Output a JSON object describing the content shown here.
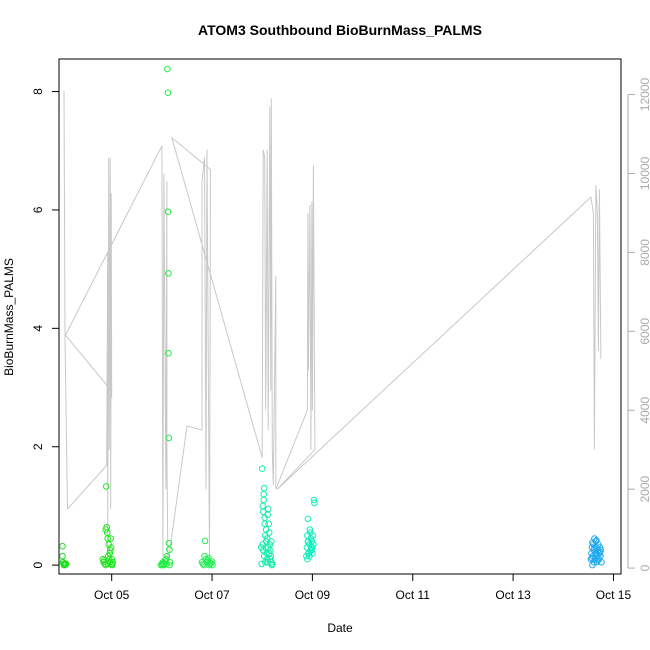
{
  "chart_data": {
    "type": "scatter",
    "title": "ATOM3 Southbound BioBurnMass_PALMS",
    "xlabel": "Date",
    "ylabel": "BioBurnMass_PALMS",
    "xlim": [
      3.95,
      15.15
    ],
    "ylim": [
      -0.15,
      8.55
    ],
    "y2lim": [
      -150,
      12900
    ],
    "x_ticks": [
      {
        "value": 5,
        "label": "Oct 05"
      },
      {
        "value": 7,
        "label": "Oct 07"
      },
      {
        "value": 9,
        "label": "Oct 09"
      },
      {
        "value": 11,
        "label": "Oct 11"
      },
      {
        "value": 13,
        "label": "Oct 13"
      },
      {
        "value": 15,
        "label": "Oct 15"
      }
    ],
    "y_ticks": [
      {
        "value": 0,
        "label": "0"
      },
      {
        "value": 2,
        "label": "2"
      },
      {
        "value": 4,
        "label": "4"
      },
      {
        "value": 6,
        "label": "6"
      },
      {
        "value": 8,
        "label": "8"
      }
    ],
    "y2_ticks": [
      {
        "value": 0,
        "label": "0"
      },
      {
        "value": 2000,
        "label": "2000"
      },
      {
        "value": 4000,
        "label": "4000"
      },
      {
        "value": 6000,
        "label": "6000"
      },
      {
        "value": 8000,
        "label": "8000"
      },
      {
        "value": 10000,
        "label": "10000"
      },
      {
        "value": 12000,
        "label": "12000"
      }
    ],
    "grid": false,
    "colors": {
      "line": "#c8c8c8",
      "right_axis": "#aaaaaa",
      "frame": "#000000"
    },
    "altitude_line": [
      [
        4.05,
        12100
      ],
      [
        4.07,
        6000
      ],
      [
        4.07,
        5800
      ],
      [
        4.12,
        1500
      ],
      [
        4.9,
        2600
      ],
      [
        4.92,
        8000
      ],
      [
        4.92,
        300
      ],
      [
        4.94,
        10400
      ],
      [
        4.95,
        3000
      ],
      [
        4.97,
        10400
      ],
      [
        4.98,
        1500
      ],
      [
        4.99,
        9500
      ],
      [
        5.0,
        4300
      ],
      [
        4.99,
        4500
      ],
      [
        4.08,
        5900
      ],
      [
        6.0,
        10700
      ],
      [
        6.02,
        300
      ],
      [
        6.04,
        10000
      ],
      [
        6.08,
        2000
      ],
      [
        6.1,
        9800
      ],
      [
        6.1,
        3000
      ],
      [
        6.12,
        100
      ],
      [
        6.5,
        3600
      ],
      [
        6.8,
        3500
      ],
      [
        6.8,
        9800
      ],
      [
        6.85,
        10400
      ],
      [
        6.88,
        2000
      ],
      [
        6.9,
        10600
      ],
      [
        6.95,
        100
      ],
      [
        6.97,
        10100
      ],
      [
        6.2,
        10900
      ],
      [
        8.0,
        2800
      ],
      [
        8.02,
        10600
      ],
      [
        8.05,
        10400
      ],
      [
        8.07,
        4000
      ],
      [
        8.1,
        10600
      ],
      [
        8.12,
        3500
      ],
      [
        8.15,
        11700
      ],
      [
        8.17,
        4500
      ],
      [
        8.18,
        11900
      ],
      [
        8.2,
        3000
      ],
      [
        8.22,
        2100
      ],
      [
        8.27,
        7400
      ],
      [
        8.27,
        2000
      ],
      [
        8.9,
        4000
      ],
      [
        8.91,
        9000
      ],
      [
        8.92,
        5000
      ],
      [
        8.95,
        9200
      ],
      [
        8.97,
        3000
      ],
      [
        8.99,
        9300
      ],
      [
        9.0,
        4000
      ],
      [
        9.02,
        10200
      ],
      [
        9.05,
        3000
      ],
      [
        8.3,
        2000
      ],
      [
        14.55,
        9400
      ],
      [
        14.6,
        9000
      ],
      [
        14.62,
        3000
      ],
      [
        14.65,
        9700
      ],
      [
        14.68,
        9000
      ],
      [
        14.7,
        5500
      ],
      [
        14.72,
        9600
      ],
      [
        14.75,
        5300
      ]
    ],
    "series": [
      {
        "color": "#22dd22",
        "points": [
          [
            4.02,
            0.32
          ],
          [
            4.02,
            0.15
          ],
          [
            4.03,
            0.05
          ],
          [
            4.04,
            0.02
          ],
          [
            4.05,
            0.0
          ],
          [
            4.06,
            0.03
          ],
          [
            4.07,
            0.0
          ],
          [
            4.08,
            0.01
          ],
          [
            4.09,
            0.02
          ]
        ]
      },
      {
        "color": "#22e622",
        "points": [
          [
            4.82,
            0.1
          ],
          [
            4.84,
            0.05
          ],
          [
            4.86,
            0.02
          ],
          [
            4.88,
            0.6
          ],
          [
            4.88,
            0.0
          ],
          [
            4.89,
            1.33
          ],
          [
            4.9,
            0.64
          ],
          [
            4.91,
            0.55
          ],
          [
            4.92,
            0.45
          ],
          [
            4.93,
            0.15
          ],
          [
            4.94,
            0.35
          ],
          [
            4.95,
            0.1
          ],
          [
            4.96,
            0.2
          ],
          [
            4.97,
            0.05
          ],
          [
            4.98,
            0.45
          ],
          [
            4.99,
            0.3
          ],
          [
            5.0,
            0.02
          ],
          [
            5.0,
            0.1
          ],
          [
            5.01,
            0.0
          ],
          [
            5.02,
            0.05
          ],
          [
            4.85,
            0.08
          ],
          [
            4.93,
            0.02
          ],
          [
            4.97,
            0.25
          ],
          [
            5.01,
            0.02
          ]
        ]
      },
      {
        "color": "#22ee44",
        "points": [
          [
            5.98,
            0.0
          ],
          [
            6.0,
            0.02
          ],
          [
            6.02,
            0.05
          ],
          [
            6.04,
            0.0
          ],
          [
            6.06,
            0.08
          ],
          [
            6.08,
            0.1
          ],
          [
            6.1,
            0.15
          ],
          [
            6.11,
            8.38
          ],
          [
            6.12,
            7.98
          ],
          [
            6.12,
            5.97
          ],
          [
            6.13,
            4.93
          ],
          [
            6.13,
            3.58
          ],
          [
            6.14,
            2.15
          ],
          [
            6.14,
            0.37
          ],
          [
            6.15,
            0.26
          ],
          [
            6.15,
            0.0
          ],
          [
            6.16,
            0.05
          ],
          [
            6.01,
            0.0
          ],
          [
            6.05,
            0.03
          ],
          [
            6.09,
            0.02
          ]
        ]
      },
      {
        "color": "#22ee55",
        "points": [
          [
            6.8,
            0.05
          ],
          [
            6.82,
            0.02
          ],
          [
            6.84,
            0.0
          ],
          [
            6.86,
            0.41
          ],
          [
            6.88,
            0.1
          ],
          [
            6.9,
            0.05
          ],
          [
            6.92,
            0.08
          ],
          [
            6.94,
            0.0
          ],
          [
            6.96,
            0.02
          ],
          [
            6.98,
            0.03
          ],
          [
            7.0,
            0.06
          ],
          [
            6.85,
            0.15
          ],
          [
            6.93,
            0.12
          ],
          [
            7.01,
            0.0
          ]
        ]
      },
      {
        "color": "#11eeaa",
        "points": [
          [
            8.0,
            1.63
          ],
          [
            8.01,
            1.0
          ],
          [
            8.02,
            0.9
          ],
          [
            8.03,
            1.1
          ],
          [
            8.03,
            1.2
          ],
          [
            8.04,
            1.3
          ],
          [
            8.05,
            0.8
          ],
          [
            8.06,
            0.5
          ],
          [
            8.07,
            0.3
          ],
          [
            8.08,
            0.4
          ],
          [
            8.09,
            0.2
          ],
          [
            8.1,
            0.1
          ],
          [
            8.11,
            0.05
          ],
          [
            8.12,
            0.95
          ],
          [
            8.13,
            0.7
          ],
          [
            8.14,
            0.55
          ],
          [
            8.15,
            0.35
          ],
          [
            8.16,
            0.25
          ],
          [
            8.17,
            0.15
          ],
          [
            8.18,
            0.05
          ],
          [
            8.19,
            0.0
          ],
          [
            8.2,
            0.02
          ],
          [
            8.01,
            0.35
          ],
          [
            8.02,
            0.25
          ],
          [
            8.04,
            0.15
          ],
          [
            8.06,
            0.05
          ],
          [
            8.08,
            0.6
          ],
          [
            8.1,
            0.45
          ],
          [
            8.12,
            0.3
          ],
          [
            8.14,
            0.2
          ],
          [
            8.16,
            0.1
          ],
          [
            8.18,
            0.4
          ],
          [
            7.98,
            0.3
          ],
          [
            7.99,
            0.02
          ],
          [
            8.05,
            0.7
          ],
          [
            8.11,
            0.85
          ]
        ]
      },
      {
        "color": "#11eebb",
        "points": [
          [
            8.88,
            0.15
          ],
          [
            8.89,
            0.3
          ],
          [
            8.9,
            0.5
          ],
          [
            8.91,
            0.78
          ],
          [
            8.92,
            0.4
          ],
          [
            8.93,
            0.2
          ],
          [
            8.94,
            0.35
          ],
          [
            8.95,
            0.6
          ],
          [
            8.96,
            0.55
          ],
          [
            8.97,
            0.45
          ],
          [
            8.98,
            0.25
          ],
          [
            8.99,
            0.4
          ],
          [
            9.0,
            0.3
          ],
          [
            9.01,
            0.5
          ],
          [
            9.02,
            0.35
          ],
          [
            9.03,
            1.1
          ],
          [
            9.04,
            1.05
          ],
          [
            8.9,
            0.1
          ],
          [
            8.92,
            0.2
          ],
          [
            8.94,
            0.15
          ],
          [
            8.96,
            0.25
          ],
          [
            8.98,
            0.3
          ],
          [
            9.0,
            0.2
          ],
          [
            8.91,
            0.4
          ]
        ]
      },
      {
        "color": "#22aaee",
        "points": [
          [
            14.55,
            0.1
          ],
          [
            14.56,
            0.2
          ],
          [
            14.57,
            0.3
          ],
          [
            14.58,
            0.0
          ],
          [
            14.59,
            0.15
          ],
          [
            14.6,
            0.35
          ],
          [
            14.61,
            0.25
          ],
          [
            14.62,
            0.45
          ],
          [
            14.63,
            0.1
          ],
          [
            14.64,
            0.2
          ],
          [
            14.65,
            0.4
          ],
          [
            14.66,
            0.3
          ],
          [
            14.67,
            0.05
          ],
          [
            14.68,
            0.15
          ],
          [
            14.69,
            0.25
          ],
          [
            14.7,
            0.35
          ],
          [
            14.71,
            0.1
          ],
          [
            14.72,
            0.2
          ],
          [
            14.73,
            0.3
          ],
          [
            14.74,
            0.15
          ],
          [
            14.75,
            0.25
          ],
          [
            14.76,
            0.05
          ],
          [
            14.57,
            0.12
          ],
          [
            14.61,
            0.05
          ],
          [
            14.65,
            0.18
          ],
          [
            14.69,
            0.08
          ],
          [
            14.73,
            0.22
          ],
          [
            14.58,
            0.38
          ],
          [
            14.62,
            0.28
          ],
          [
            14.66,
            0.42
          ]
        ]
      }
    ]
  }
}
